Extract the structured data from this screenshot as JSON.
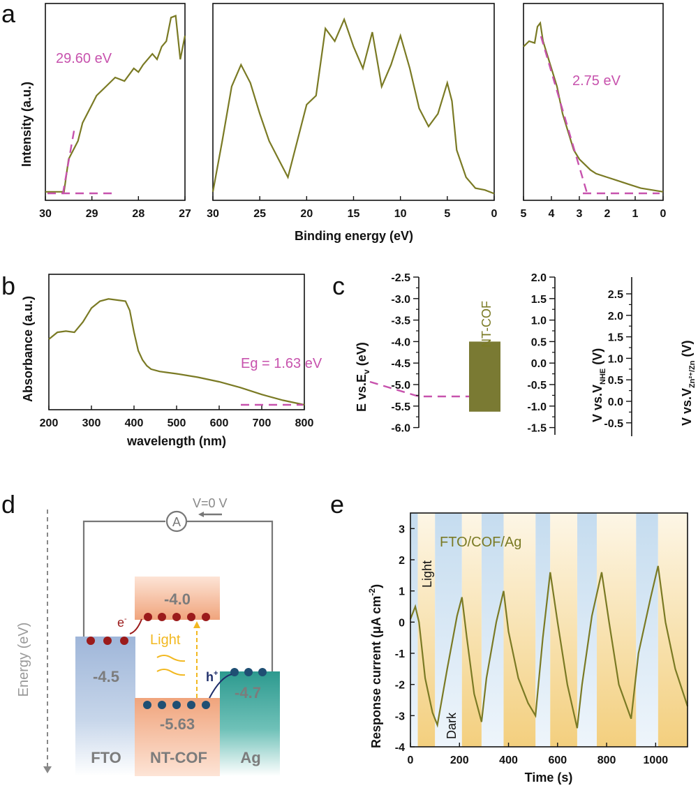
{
  "panel_labels": {
    "a": "a",
    "b": "b",
    "c": "c",
    "d": "d",
    "e": "e"
  },
  "colors": {
    "curve": "#7a7a24",
    "annotation": "#c752ad",
    "cof_bar": "#7a7a33",
    "light_band": "#cfe3f2",
    "dark_band": "#f5d98f",
    "electron": "#9b1b1b",
    "hole": "#1f4f73"
  },
  "chart_data": [
    {
      "panel": "a",
      "type": "line",
      "ylabel": "Intensity (a.u.)",
      "xlabel": "Binding energy (eV)",
      "subplots": [
        {
          "xlim": [
            30,
            27
          ],
          "xticks": [
            "30",
            "29",
            "28",
            "27"
          ],
          "annotation": "29.60 eV",
          "x": [
            30,
            29.7,
            29.6,
            29.5,
            29.4,
            29.3,
            29.2,
            29.0,
            28.9,
            28.7,
            28.5,
            28.3,
            28.1,
            28.0,
            27.9,
            27.7,
            27.6,
            27.5,
            27.4,
            27.3,
            27.2,
            27.1,
            27.0
          ],
          "y": [
            0.02,
            0.02,
            0.02,
            0.2,
            0.25,
            0.3,
            0.4,
            0.5,
            0.55,
            0.6,
            0.65,
            0.63,
            0.7,
            0.68,
            0.72,
            0.78,
            0.75,
            0.82,
            0.85,
            0.98,
            0.99,
            0.75,
            0.88
          ]
        },
        {
          "xlim": [
            30,
            0
          ],
          "xticks": [
            "30",
            "25",
            "20",
            "15",
            "10",
            "5",
            "0"
          ],
          "x": [
            30,
            29,
            28,
            27,
            26,
            25,
            24,
            23,
            22,
            21,
            20,
            19,
            18,
            17,
            16,
            15,
            14,
            13,
            12,
            11,
            10,
            9,
            8,
            7,
            6,
            5,
            4.5,
            4,
            3,
            2,
            1,
            0
          ],
          "y": [
            0.02,
            0.3,
            0.6,
            0.72,
            0.62,
            0.45,
            0.3,
            0.2,
            0.1,
            0.3,
            0.5,
            0.55,
            0.92,
            0.85,
            0.97,
            0.82,
            0.7,
            0.9,
            0.6,
            0.72,
            0.88,
            0.7,
            0.48,
            0.38,
            0.45,
            0.62,
            0.52,
            0.25,
            0.1,
            0.04,
            0.03,
            0.01
          ]
        },
        {
          "xlim": [
            5,
            0
          ],
          "xticks": [
            "5",
            "4",
            "3",
            "2",
            "1",
            "0"
          ],
          "annotation": "2.75 eV",
          "x": [
            5,
            4.8,
            4.6,
            4.5,
            4.4,
            4.3,
            4.2,
            4.0,
            3.8,
            3.6,
            3.4,
            3.2,
            3.0,
            2.8,
            2.6,
            2.4,
            2.0,
            1.6,
            1.2,
            0.8,
            0.4,
            0
          ],
          "y": [
            0.82,
            0.85,
            0.84,
            0.93,
            0.95,
            0.85,
            0.8,
            0.7,
            0.6,
            0.45,
            0.35,
            0.25,
            0.2,
            0.17,
            0.14,
            0.12,
            0.1,
            0.08,
            0.06,
            0.04,
            0.03,
            0.02
          ]
        }
      ]
    },
    {
      "panel": "b",
      "type": "line",
      "xlabel": "wavelength (nm)",
      "ylabel": "Absorbance (a.u.)",
      "xlim": [
        200,
        800
      ],
      "xticks": [
        "200",
        "300",
        "400",
        "500",
        "600",
        "700",
        "800"
      ],
      "annotation": "Eg = 1.63 eV",
      "x": [
        200,
        220,
        240,
        260,
        280,
        300,
        320,
        340,
        360,
        380,
        390,
        400,
        410,
        420,
        430,
        440,
        460,
        480,
        500,
        550,
        600,
        650,
        700,
        750,
        800
      ],
      "y": [
        0.6,
        0.66,
        0.67,
        0.66,
        0.75,
        0.87,
        0.93,
        0.95,
        0.94,
        0.93,
        0.85,
        0.66,
        0.5,
        0.42,
        0.37,
        0.34,
        0.32,
        0.31,
        0.3,
        0.27,
        0.23,
        0.18,
        0.12,
        0.07,
        0.03
      ]
    },
    {
      "panel": "c",
      "type": "bar",
      "series": [
        {
          "name": "NT-COF",
          "bottom": -5.63,
          "top": -4.0
        }
      ],
      "axes": [
        {
          "label": "E vs.E",
          "label_sub": "v",
          "label_tail": " (eV)",
          "ticks": [
            "-2.5",
            "-3.0",
            "-3.5",
            "-4.0",
            "-4.5",
            "-5.0",
            "-5.5",
            "-6.0"
          ]
        },
        {
          "label": "V vs.V",
          "label_sub": "NHE",
          "label_tail": " (V)",
          "ticks": [
            "2.0",
            "1.5",
            "1.0",
            "0.5",
            "0.0",
            "-0.5",
            "-1.0",
            "-1.5"
          ]
        },
        {
          "label": "V vs.V",
          "label_sub": "Zn²⁺/Zn",
          "label_tail": " (V)",
          "ticks": [
            "2.5",
            "2.0",
            "1.5",
            "1.0",
            "0.5",
            "0.0",
            "-0.5"
          ]
        }
      ]
    },
    {
      "panel": "e",
      "type": "line",
      "title": "FTO/COF/Ag",
      "xlabel": "Time (s)",
      "ylabel": "Response current (μA cm",
      "ylabel_sup": "-2",
      "ylabel_tail": ")",
      "xlim": [
        0,
        1130
      ],
      "ylim": [
        -4,
        3.5
      ],
      "xticks": [
        "0",
        "200",
        "400",
        "600",
        "800",
        "1000"
      ],
      "yticks": [
        "3",
        "2",
        "1",
        "0",
        "-1",
        "-2",
        "-3",
        "-4"
      ],
      "band_labels": {
        "light": "Light",
        "dark": "Dark"
      },
      "light_on": [
        [
          0,
          30
        ],
        [
          100,
          210
        ],
        [
          290,
          380
        ],
        [
          510,
          570
        ],
        [
          680,
          760
        ],
        [
          920,
          1010
        ]
      ],
      "dark_on": [
        [
          30,
          100
        ],
        [
          210,
          290
        ],
        [
          380,
          510
        ],
        [
          570,
          680
        ],
        [
          760,
          920
        ],
        [
          1010,
          1130
        ]
      ],
      "x": [
        0,
        20,
        35,
        60,
        90,
        110,
        150,
        190,
        210,
        230,
        260,
        290,
        310,
        350,
        380,
        400,
        440,
        480,
        510,
        540,
        570,
        600,
        640,
        680,
        700,
        740,
        780,
        810,
        850,
        900,
        930,
        980,
        1010,
        1040,
        1080,
        1130
      ],
      "y": [
        0.1,
        0.5,
        0.0,
        -1.8,
        -2.9,
        -3.3,
        -1.5,
        0.2,
        0.8,
        -0.5,
        -2.3,
        -3.2,
        -1.8,
        0.0,
        1.0,
        -0.3,
        -1.8,
        -2.6,
        -3.0,
        -0.5,
        1.6,
        0.0,
        -2.0,
        -3.4,
        -2.0,
        0.2,
        1.6,
        0.0,
        -2.0,
        -3.1,
        -1.0,
        0.8,
        1.8,
        0.0,
        -1.5,
        -2.7
      ]
    }
  ],
  "diagram_d": {
    "voltage_label": "V=0 V",
    "ammeter": "A",
    "energy_label": "Energy (eV)",
    "light_label": "Light",
    "electron_label": "e",
    "electron_sup": "-",
    "hole_label": "h",
    "hole_sup": "+",
    "levels": {
      "fto": "-4.5",
      "cof_cb": "-4.0",
      "cof_vb": "-5.63",
      "ag": "-4.7"
    },
    "materials": {
      "fto": "FTO",
      "cof": "NT-COF",
      "ag": "Ag"
    }
  }
}
